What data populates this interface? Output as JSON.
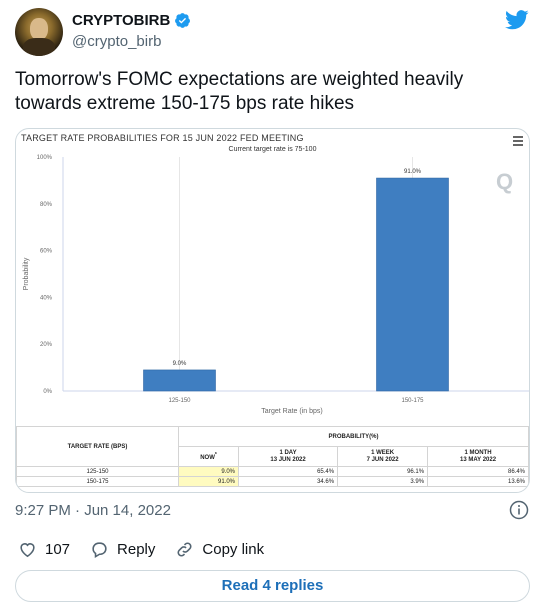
{
  "author": {
    "display_name": "CRYPTOBIRB",
    "handle": "@crypto_birb"
  },
  "tweet": {
    "text": "Tomorrow's FOMC expectations are weighted heavily towards extreme 150-175 bps rate hikes",
    "timestamp": "9:27 PM · Jun 14, 2022"
  },
  "actions": {
    "likes_count": "107",
    "reply_label": "Reply",
    "copy_link_label": "Copy link",
    "read_replies_label": "Read 4 replies"
  },
  "colors": {
    "bar": "#3f7ec1",
    "accent": "#1d9bf0",
    "now_highlight": "#fffbc0"
  },
  "chart_data": {
    "type": "bar",
    "title": "TARGET RATE PROBABILITIES FOR 15 JUN 2022 FED MEETING",
    "subtitle": "Current target rate is 75-100",
    "xlabel": "Target Rate (in bps)",
    "ylabel": "Probability",
    "categories": [
      "125-150",
      "150-175"
    ],
    "values": [
      9.0,
      91.0
    ],
    "value_labels": [
      "9.0%",
      "91.0%"
    ],
    "ylim": [
      0,
      100
    ],
    "y_ticks": [
      "0%",
      "20%",
      "40%",
      "60%",
      "80%",
      "100%"
    ],
    "grid": false
  },
  "prob_table": {
    "header_left": "TARGET RATE (BPS)",
    "header_right": "PROBABILITY(%)",
    "columns": [
      {
        "label": "NOW",
        "marker": "*",
        "date": ""
      },
      {
        "label": "1 DAY",
        "date": "13 JUN 2022"
      },
      {
        "label": "1 WEEK",
        "date": "7 JUN 2022"
      },
      {
        "label": "1 MONTH",
        "date": "13 MAY 2022"
      }
    ],
    "rows": [
      {
        "rate": "125-150",
        "values": [
          "9.0%",
          "65.4%",
          "96.1%",
          "86.4%"
        ]
      },
      {
        "rate": "150-175",
        "values": [
          "91.0%",
          "34.6%",
          "3.9%",
          "13.6%"
        ]
      }
    ]
  }
}
